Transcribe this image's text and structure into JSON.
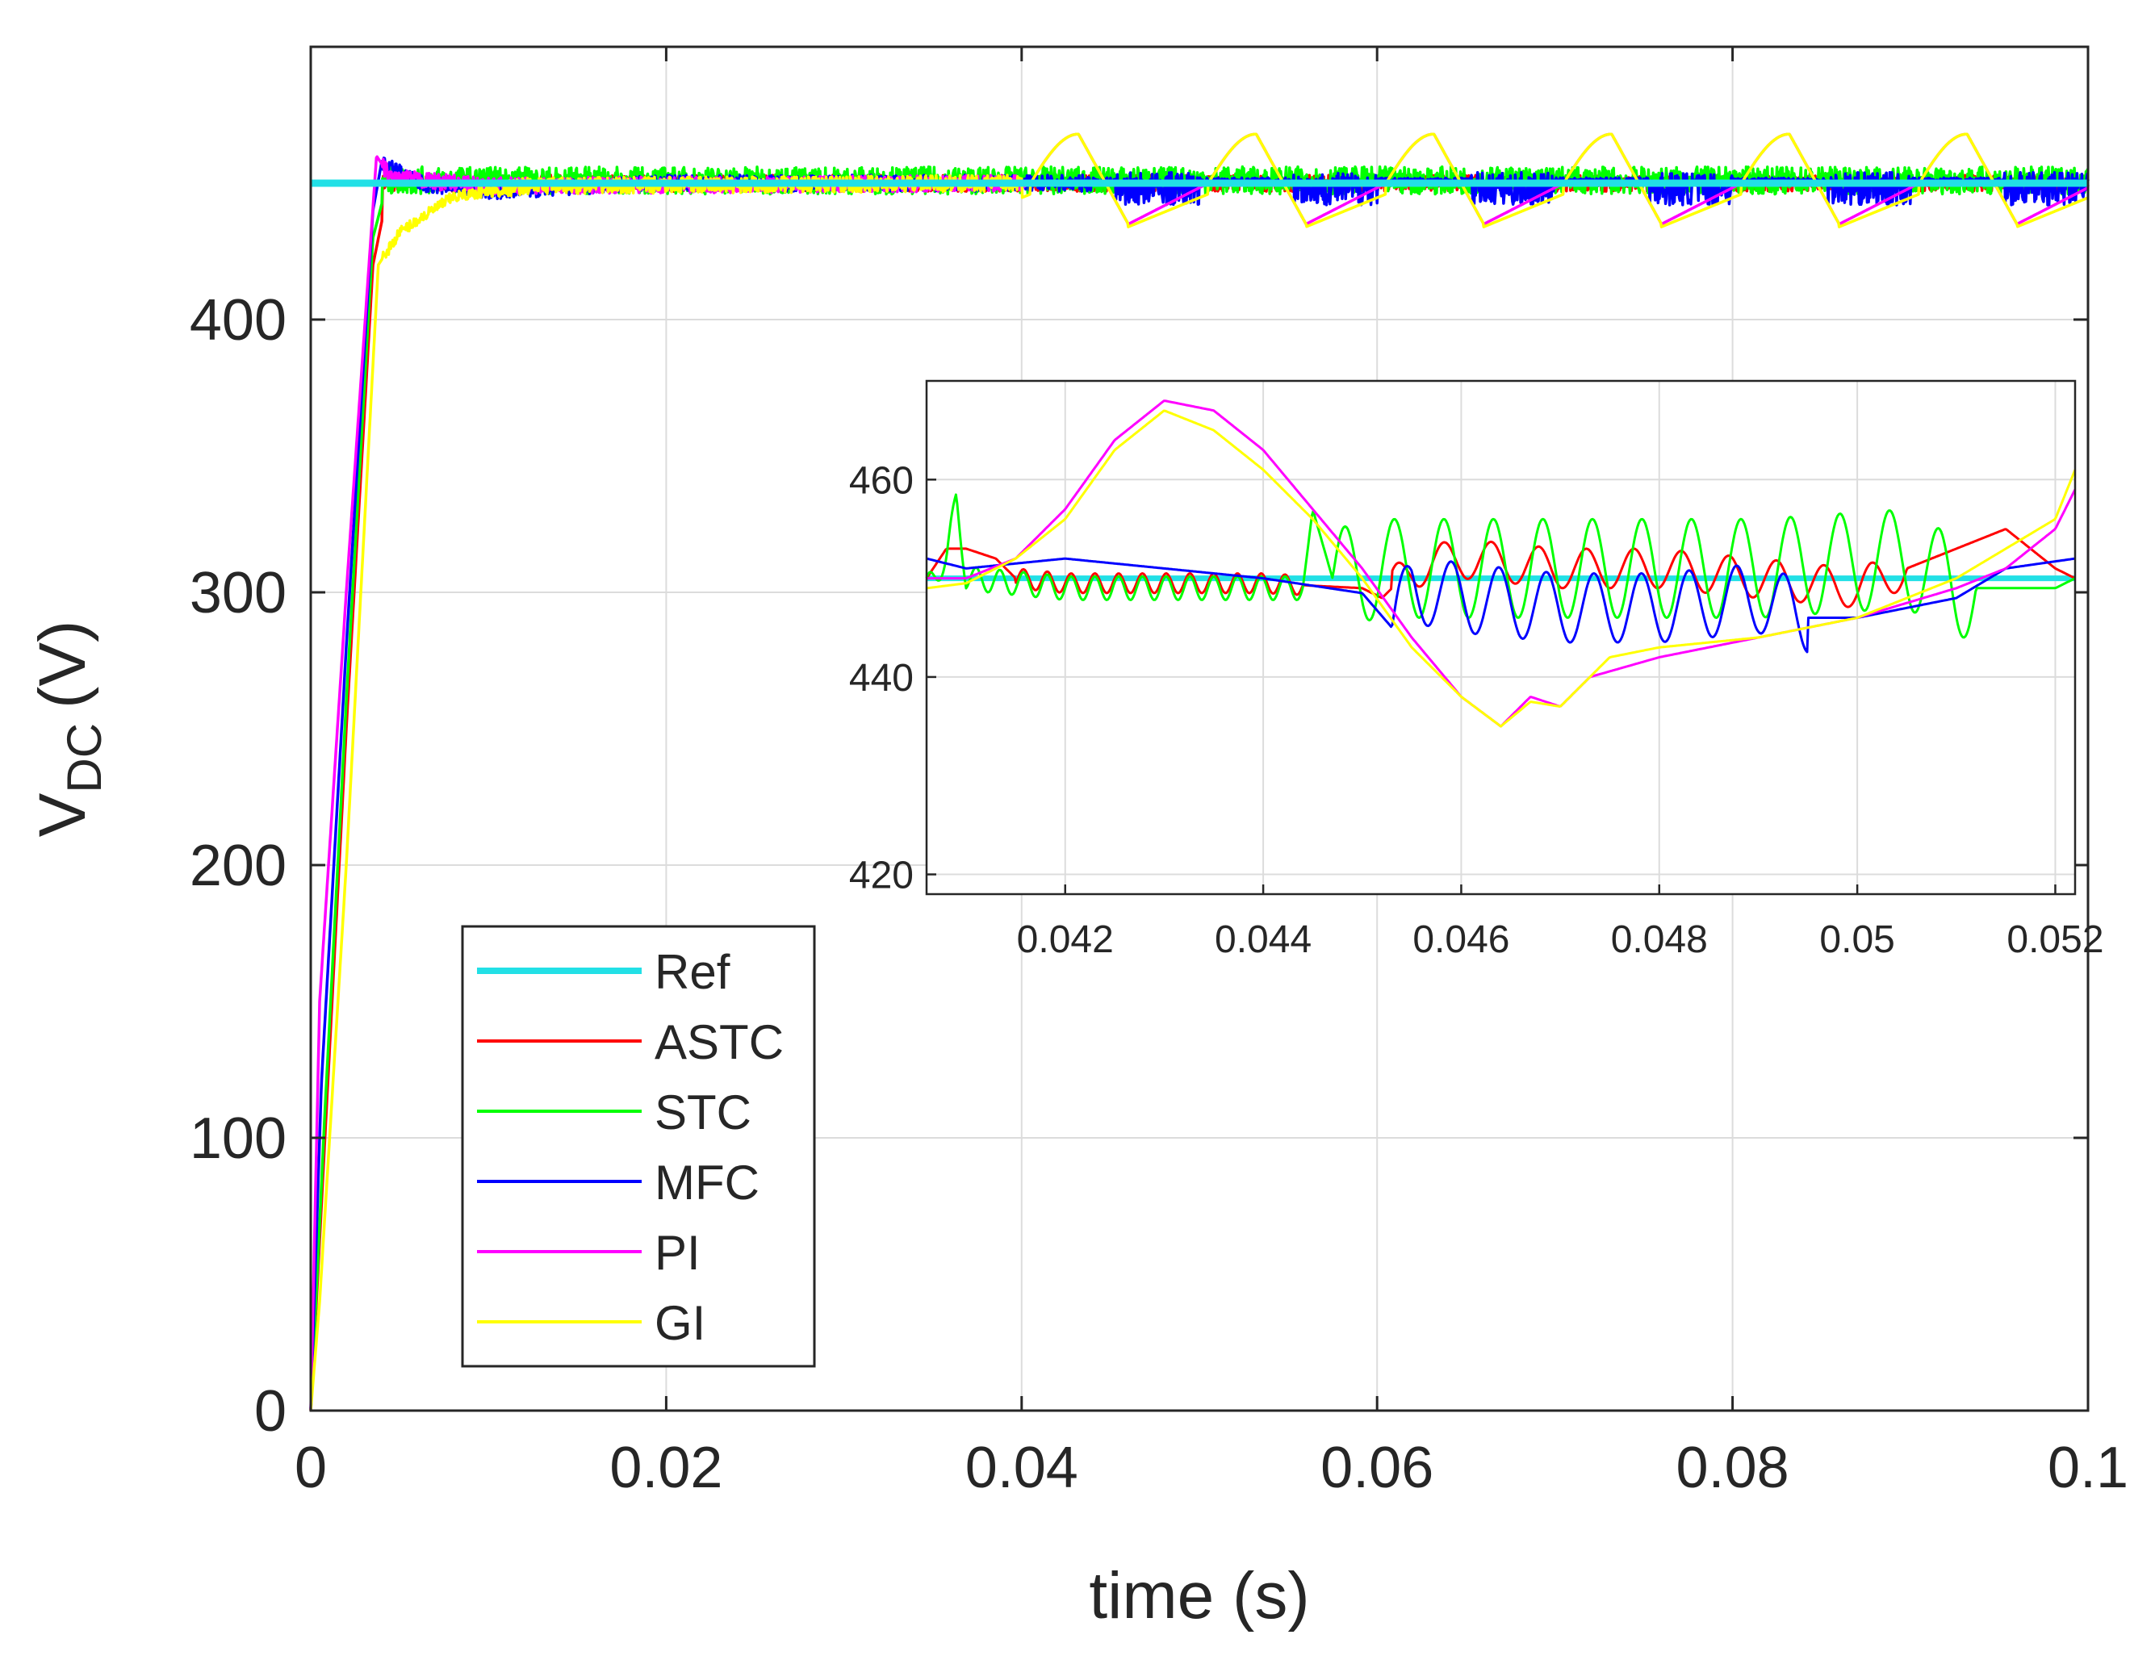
{
  "chart_data": [
    {
      "type": "line",
      "xlabel": "time (s)",
      "ylabel_main": "V",
      "ylabel_sub": "DC",
      "ylabel_unit": "(V)",
      "xlim": [
        0,
        0.1
      ],
      "ylim": [
        0,
        500
      ],
      "xticks": [
        0,
        0.02,
        0.04,
        0.06,
        0.08,
        0.1
      ],
      "xtick_labels": [
        "0",
        "0.02",
        "0.04",
        "0.06",
        "0.08",
        "0.1"
      ],
      "yticks": [
        0,
        100,
        200,
        300,
        400
      ],
      "ytick_labels": [
        "0",
        "100",
        "200",
        "300",
        "400"
      ],
      "grid": true,
      "legend_position": "bottom-left",
      "series": [
        {
          "name": "Ref",
          "color": "#22e0e6",
          "values_description": "constant reference at 450 V",
          "points": [
            [
              0,
              450
            ],
            [
              0.1,
              450
            ]
          ]
        },
        {
          "name": "ASTC",
          "color": "#ff0000",
          "points": [
            [
              0,
              0
            ],
            [
              0.0008,
              100
            ],
            [
              0.002,
              250
            ],
            [
              0.0035,
              420
            ],
            [
              0.0045,
              452
            ],
            [
              0.006,
              451
            ],
            [
              0.01,
              449
            ],
            [
              0.02,
              450
            ],
            [
              0.04,
              450
            ],
            [
              0.1,
              450
            ]
          ]
        },
        {
          "name": "STC",
          "color": "#00ff00",
          "points": [
            [
              0,
              0
            ],
            [
              0.0008,
              110
            ],
            [
              0.002,
              260
            ],
            [
              0.0035,
              430
            ],
            [
              0.0045,
              455
            ],
            [
              0.006,
              452
            ],
            [
              0.01,
              450
            ],
            [
              0.02,
              451
            ],
            [
              0.04,
              450
            ],
            [
              0.1,
              450
            ]
          ]
        },
        {
          "name": "MFC",
          "color": "#0000ff",
          "points": [
            [
              0,
              0
            ],
            [
              0.0006,
              120
            ],
            [
              0.002,
              280
            ],
            [
              0.0035,
              440
            ],
            [
              0.004,
              458
            ],
            [
              0.006,
              450
            ],
            [
              0.01,
              447
            ],
            [
              0.02,
              450
            ],
            [
              0.04,
              450
            ],
            [
              0.1,
              450
            ]
          ]
        },
        {
          "name": "PI",
          "color": "#ff00ff",
          "points": [
            [
              0,
              0
            ],
            [
              0.0005,
              150
            ],
            [
              0.002,
              300
            ],
            [
              0.0037,
              460
            ],
            [
              0.0045,
              452
            ],
            [
              0.01,
              449
            ],
            [
              0.04,
              450
            ],
            [
              0.043,
              458
            ],
            [
              0.045,
              440
            ],
            [
              0.046,
              437
            ],
            [
              0.048,
              442
            ],
            [
              0.05,
              446
            ],
            [
              0.053,
              458
            ],
            [
              0.055,
              440
            ],
            [
              0.1,
              450
            ]
          ]
        },
        {
          "name": "GI",
          "color": "#ffff00",
          "points": [
            [
              0,
              0
            ],
            [
              0.0005,
              40
            ],
            [
              0.002,
              200
            ],
            [
              0.0038,
              420
            ],
            [
              0.005,
              432
            ],
            [
              0.008,
              445
            ],
            [
              0.012,
              449
            ],
            [
              0.04,
              450
            ],
            [
              0.043,
              457
            ],
            [
              0.045,
              437
            ],
            [
              0.048,
              441
            ],
            [
              0.05,
              446
            ],
            [
              0.053,
              457
            ],
            [
              0.055,
              436
            ],
            [
              0.1,
              445
            ]
          ]
        }
      ]
    },
    {
      "type": "line",
      "role": "inset zoom",
      "xlim": [
        0.0406,
        0.0522
      ],
      "ylim": [
        418,
        470
      ],
      "xticks": [
        0.042,
        0.044,
        0.046,
        0.048,
        0.05,
        0.052
      ],
      "xtick_labels": [
        "0.042",
        "0.044",
        "0.046",
        "0.048",
        "0.05",
        "0.052"
      ],
      "yticks": [
        420,
        440,
        460
      ],
      "ytick_labels": [
        "420",
        "440",
        "460"
      ],
      "grid": true,
      "series": [
        {
          "name": "Ref",
          "color": "#22e0e6",
          "points": [
            [
              0.0406,
              450
            ],
            [
              0.0522,
              450
            ]
          ]
        },
        {
          "name": "ASTC",
          "color": "#ff0000",
          "points": [
            [
              0.0406,
              450
            ],
            [
              0.0408,
              453
            ],
            [
              0.041,
              453
            ],
            [
              0.0413,
              452
            ],
            [
              0.0415,
              450
            ],
            [
              0.042,
              449.5
            ],
            [
              0.043,
              449.5
            ],
            [
              0.044,
              449.5
            ],
            [
              0.045,
              449
            ],
            [
              0.0452,
              448
            ],
            [
              0.0455,
              451
            ],
            [
              0.046,
              452
            ],
            [
              0.047,
              451
            ],
            [
              0.048,
              451
            ],
            [
              0.049,
              450
            ],
            [
              0.05,
              449
            ],
            [
              0.0505,
              451
            ],
            [
              0.051,
              453
            ],
            [
              0.0515,
              455
            ],
            [
              0.052,
              451
            ],
            [
              0.0522,
              450
            ]
          ]
        },
        {
          "name": "STC",
          "color": "#00ff00",
          "points": [
            [
              0.0406,
              449
            ],
            [
              0.0408,
              452
            ],
            [
              0.0409,
              458
            ],
            [
              0.041,
              450
            ],
            [
              0.042,
              449
            ],
            [
              0.043,
              449
            ],
            [
              0.044,
              449
            ],
            [
              0.0444,
              449
            ],
            [
              0.0445,
              457
            ],
            [
              0.0447,
              450
            ],
            [
              0.0452,
              451
            ],
            [
              0.046,
              451
            ],
            [
              0.047,
              451
            ],
            [
              0.048,
              451
            ],
            [
              0.049,
              451
            ],
            [
              0.0505,
              452
            ],
            [
              0.051,
              449
            ],
            [
              0.052,
              449
            ],
            [
              0.0522,
              450
            ]
          ]
        },
        {
          "name": "MFC",
          "color": "#0000ff",
          "points": [
            [
              0.0406,
              452
            ],
            [
              0.041,
              451
            ],
            [
              0.042,
              452
            ],
            [
              0.043,
              451
            ],
            [
              0.044,
              450
            ],
            [
              0.045,
              448.5
            ],
            [
              0.0453,
              445
            ],
            [
              0.0455,
              449
            ],
            [
              0.046,
              448
            ],
            [
              0.047,
              447
            ],
            [
              0.048,
              447
            ],
            [
              0.049,
              448
            ],
            [
              0.0495,
              446
            ],
            [
              0.05,
              446
            ],
            [
              0.051,
              448
            ],
            [
              0.0515,
              451
            ],
            [
              0.0522,
              452
            ]
          ]
        },
        {
          "name": "PI",
          "color": "#ff00ff",
          "points": [
            [
              0.0406,
              450
            ],
            [
              0.041,
              450
            ],
            [
              0.0415,
              452
            ],
            [
              0.042,
              457
            ],
            [
              0.0425,
              464
            ],
            [
              0.043,
              468
            ],
            [
              0.0435,
              467
            ],
            [
              0.044,
              463
            ],
            [
              0.0445,
              457
            ],
            [
              0.045,
              451
            ],
            [
              0.0455,
              444
            ],
            [
              0.046,
              438
            ],
            [
              0.0464,
              435
            ],
            [
              0.0467,
              438
            ],
            [
              0.047,
              437
            ],
            [
              0.0473,
              440
            ],
            [
              0.048,
              442
            ],
            [
              0.049,
              444
            ],
            [
              0.05,
              446
            ],
            [
              0.051,
              449
            ],
            [
              0.0515,
              451
            ],
            [
              0.052,
              455
            ],
            [
              0.0522,
              459
            ]
          ]
        },
        {
          "name": "GI",
          "color": "#ffff00",
          "points": [
            [
              0.0406,
              449
            ],
            [
              0.041,
              449.5
            ],
            [
              0.0415,
              452
            ],
            [
              0.042,
              456
            ],
            [
              0.0425,
              463
            ],
            [
              0.043,
              467
            ],
            [
              0.0435,
              465
            ],
            [
              0.044,
              461
            ],
            [
              0.0445,
              456
            ],
            [
              0.045,
              450
            ],
            [
              0.0455,
              443
            ],
            [
              0.046,
              438
            ],
            [
              0.0464,
              435
            ],
            [
              0.0467,
              437.5
            ],
            [
              0.047,
              437
            ],
            [
              0.0473,
              440
            ],
            [
              0.0475,
              442
            ],
            [
              0.048,
              443
            ],
            [
              0.049,
              444
            ],
            [
              0.05,
              446
            ],
            [
              0.051,
              450
            ],
            [
              0.052,
              456
            ],
            [
              0.0522,
              461
            ]
          ]
        }
      ]
    }
  ]
}
